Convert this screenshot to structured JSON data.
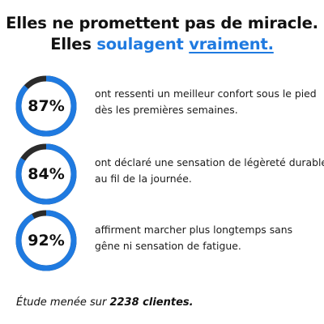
{
  "headline": {
    "line1": "Elles ne promettent pas de miracle.",
    "line2_prefix": "Elles ",
    "line2_accent": "soulagent",
    "line2_underlined": "vraiment."
  },
  "colors": {
    "accent": "#1f7ae0",
    "ring_track": "#2b2b2b",
    "text": "#111111"
  },
  "stats": [
    {
      "percent_label": "87%",
      "value": 0.87,
      "line1": "ont ressenti un meilleur confort sous le pied",
      "line2": "dès les premières semaines."
    },
    {
      "percent_label": "84%",
      "value": 0.84,
      "line1": "ont déclaré une sensation de légèreté durable",
      "line2": "au fil de la journée."
    },
    {
      "percent_label": "92%",
      "value": 0.92,
      "line1": "affirment marcher plus longtemps sans",
      "line2": "gêne ni sensation de fatigue."
    }
  ],
  "footnote": {
    "prefix": "Étude menée sur ",
    "bold": "2238 clientes."
  }
}
